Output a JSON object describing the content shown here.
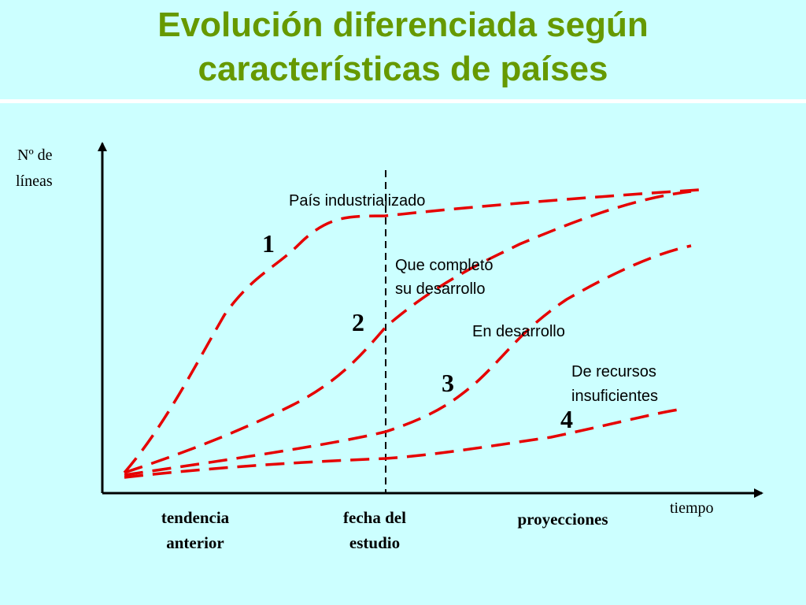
{
  "title": {
    "line1": "Evolución diferenciada según",
    "line2": "características de países"
  },
  "axes": {
    "y_label_line1": "Nº de",
    "y_label_line2": "líneas",
    "x_label": "tiempo"
  },
  "labels": {
    "curve1": "País industrializado",
    "curve2_line1": "Que completó",
    "curve2_line2": "su desarrollo",
    "curve3": "En desarrollo",
    "curve4_line1": "De recursos",
    "curve4_line2": "insuficientes"
  },
  "numbers": {
    "n1": "1",
    "n2": "2",
    "n3": "3",
    "n4": "4"
  },
  "periods": {
    "past_line1": "tendencia",
    "past_line2": "anterior",
    "study_line1": "fecha del",
    "study_line2": "estudio",
    "future": "proyecciones"
  },
  "colors": {
    "title": "#669900",
    "curves": "#e60000",
    "axes": "#000000",
    "background": "#ccffff"
  }
}
